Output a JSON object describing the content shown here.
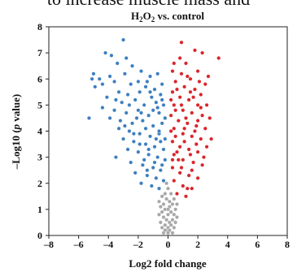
{
  "caption_fragment": "to increase muscle mass and",
  "chart_data": {
    "type": "scatter",
    "title_parts": {
      "prefix": "H",
      "sub1": "2",
      "mid": "O",
      "sub2": "2",
      "suffix": " vs. control"
    },
    "xlabel": "Log2 fold change",
    "ylabel_parts": {
      "prefix": "–Log10 (",
      "italic": "p",
      "suffix": " value)"
    },
    "xlim": [
      -8,
      8
    ],
    "ylim": [
      0,
      8
    ],
    "xticks": [
      -8,
      -6,
      -4,
      -2,
      0,
      2,
      4,
      6,
      8
    ],
    "yticks": [
      0,
      1,
      2,
      3,
      4,
      5,
      6,
      7,
      8
    ],
    "grid": false,
    "legend": "none",
    "colors": {
      "down": "#3d7fbf",
      "up": "#d9252b",
      "ns": "#a8a8a8"
    },
    "series": [
      {
        "group": "down",
        "points": [
          [
            -3.0,
            7.5
          ],
          [
            -3.8,
            6.9
          ],
          [
            -4.2,
            7.0
          ],
          [
            -3.4,
            6.6
          ],
          [
            -2.8,
            6.8
          ],
          [
            -2.4,
            6.5
          ],
          [
            -5.0,
            6.2
          ],
          [
            -5.1,
            6.0
          ],
          [
            -4.6,
            6.0
          ],
          [
            -3.9,
            6.1
          ],
          [
            -2.9,
            6.2
          ],
          [
            -1.8,
            6.3
          ],
          [
            -1.2,
            6.1
          ],
          [
            -0.7,
            6.2
          ],
          [
            -4.4,
            5.8
          ],
          [
            -4.9,
            5.7
          ],
          [
            -3.6,
            5.9
          ],
          [
            -2.5,
            5.8
          ],
          [
            -1.5,
            5.7
          ],
          [
            -0.9,
            5.6
          ],
          [
            -0.4,
            5.8
          ],
          [
            -3.3,
            5.5
          ],
          [
            -2.7,
            5.4
          ],
          [
            -1.9,
            5.5
          ],
          [
            -1.1,
            5.3
          ],
          [
            -0.5,
            5.4
          ],
          [
            -4.1,
            5.3
          ],
          [
            -3.1,
            5.1
          ],
          [
            -2.2,
            5.2
          ],
          [
            -1.6,
            5.0
          ],
          [
            -0.8,
            5.1
          ],
          [
            -0.3,
            5.0
          ],
          [
            -4.4,
            4.9
          ],
          [
            -3.6,
            4.8
          ],
          [
            -2.8,
            4.7
          ],
          [
            -2.0,
            4.8
          ],
          [
            -1.3,
            4.6
          ],
          [
            -0.6,
            4.7
          ],
          [
            -0.2,
            4.5
          ],
          [
            -5.3,
            4.5
          ],
          [
            -3.9,
            4.5
          ],
          [
            -3.2,
            4.4
          ],
          [
            -2.4,
            4.3
          ],
          [
            -1.7,
            4.4
          ],
          [
            -1.0,
            4.2
          ],
          [
            -0.4,
            4.3
          ],
          [
            -3.3,
            4.1
          ],
          [
            -2.6,
            4.0
          ],
          [
            -1.9,
            3.9
          ],
          [
            -1.2,
            3.8
          ],
          [
            -0.6,
            3.9
          ],
          [
            -0.2,
            3.7
          ],
          [
            -3.0,
            3.7
          ],
          [
            -2.3,
            3.6
          ],
          [
            -1.5,
            3.5
          ],
          [
            -0.9,
            3.4
          ],
          [
            -0.3,
            3.3
          ],
          [
            -2.7,
            3.3
          ],
          [
            -2.0,
            3.2
          ],
          [
            -1.3,
            3.1
          ],
          [
            -0.7,
            3.0
          ],
          [
            -0.2,
            2.9
          ],
          [
            -3.5,
            3.0
          ],
          [
            -2.5,
            2.8
          ],
          [
            -1.7,
            2.7
          ],
          [
            -1.0,
            2.6
          ],
          [
            -0.5,
            2.5
          ],
          [
            -2.2,
            2.4
          ],
          [
            -1.4,
            2.3
          ],
          [
            -0.8,
            2.2
          ],
          [
            -0.3,
            2.1
          ],
          [
            -1.8,
            2.0
          ],
          [
            -1.1,
            1.9
          ],
          [
            -0.6,
            1.8
          ],
          [
            -2.0,
            5.9
          ],
          [
            -1.4,
            5.9
          ],
          [
            -0.6,
            4.0
          ],
          [
            -1.5,
            4.1
          ],
          [
            -2.1,
            4.5
          ],
          [
            -2.9,
            4.2
          ],
          [
            -1.3,
            3.3
          ],
          [
            -0.5,
            3.6
          ],
          [
            -1.6,
            2.9
          ],
          [
            -0.9,
            2.8
          ],
          [
            -2.3,
            3.9
          ],
          [
            -1.8,
            4.7
          ],
          [
            -0.7,
            4.9
          ],
          [
            -1.2,
            5.5
          ],
          [
            -2.6,
            5.0
          ],
          [
            -3.5,
            5.2
          ],
          [
            -0.4,
            5.2
          ],
          [
            -1.0,
            4.8
          ],
          [
            -1.9,
            3.5
          ],
          [
            -0.8,
            3.7
          ],
          [
            -1.4,
            2.5
          ],
          [
            -0.4,
            2.7
          ]
        ]
      },
      {
        "group": "up",
        "points": [
          [
            0.9,
            7.4
          ],
          [
            1.8,
            7.1
          ],
          [
            2.3,
            7.0
          ],
          [
            3.4,
            6.8
          ],
          [
            0.4,
            6.6
          ],
          [
            1.2,
            6.6
          ],
          [
            2.0,
            6.3
          ],
          [
            2.7,
            6.1
          ],
          [
            0.3,
            6.3
          ],
          [
            0.9,
            6.2
          ],
          [
            1.5,
            6.0
          ],
          [
            2.5,
            5.8
          ],
          [
            0.5,
            5.9
          ],
          [
            1.1,
            5.7
          ],
          [
            1.8,
            5.6
          ],
          [
            2.2,
            5.4
          ],
          [
            0.3,
            5.5
          ],
          [
            0.8,
            5.3
          ],
          [
            1.4,
            5.2
          ],
          [
            2.0,
            5.0
          ],
          [
            2.6,
            5.0
          ],
          [
            0.4,
            5.0
          ],
          [
            1.0,
            4.8
          ],
          [
            1.6,
            4.7
          ],
          [
            2.3,
            4.6
          ],
          [
            0.2,
            4.6
          ],
          [
            0.7,
            4.4
          ],
          [
            1.3,
            4.3
          ],
          [
            1.9,
            4.2
          ],
          [
            2.5,
            4.1
          ],
          [
            0.4,
            4.1
          ],
          [
            1.0,
            3.9
          ],
          [
            1.6,
            3.8
          ],
          [
            2.2,
            3.7
          ],
          [
            2.9,
            3.7
          ],
          [
            0.3,
            3.6
          ],
          [
            0.8,
            3.4
          ],
          [
            1.4,
            3.3
          ],
          [
            2.0,
            3.2
          ],
          [
            2.6,
            3.4
          ],
          [
            0.4,
            3.1
          ],
          [
            1.0,
            2.9
          ],
          [
            1.7,
            2.8
          ],
          [
            2.3,
            2.7
          ],
          [
            0.3,
            2.6
          ],
          [
            0.8,
            2.4
          ],
          [
            1.4,
            2.3
          ],
          [
            2.0,
            2.2
          ],
          [
            0.4,
            2.1
          ],
          [
            1.0,
            1.9
          ],
          [
            1.6,
            1.8
          ],
          [
            0.6,
            1.6
          ],
          [
            1.2,
            1.5
          ],
          [
            0.5,
            3.8
          ],
          [
            1.2,
            4.5
          ],
          [
            1.7,
            5.3
          ],
          [
            0.6,
            5.6
          ],
          [
            1.3,
            6.1
          ],
          [
            2.1,
            5.9
          ],
          [
            0.7,
            2.9
          ],
          [
            1.5,
            3.1
          ],
          [
            2.2,
            4.9
          ],
          [
            2.8,
            4.5
          ],
          [
            0.5,
            4.8
          ],
          [
            1.1,
            3.6
          ],
          [
            1.8,
            4.0
          ],
          [
            0.9,
            2.6
          ],
          [
            1.6,
            2.5
          ],
          [
            2.4,
            3.0
          ],
          [
            0.2,
            4.0
          ],
          [
            0.6,
            3.2
          ],
          [
            1.9,
            3.5
          ],
          [
            0.9,
            5.0
          ],
          [
            1.5,
            5.5
          ],
          [
            2.0,
            4.4
          ],
          [
            0.3,
            2.9
          ],
          [
            1.3,
            1.8
          ],
          [
            0.8,
            6.8
          ],
          [
            0.2,
            5.2
          ],
          [
            1.1,
            4.1
          ]
        ]
      },
      {
        "group": "ns",
        "points": [
          [
            -0.1,
            1.4
          ],
          [
            0.1,
            1.3
          ],
          [
            -0.3,
            1.2
          ],
          [
            0.3,
            1.2
          ],
          [
            -0.5,
            1.1
          ],
          [
            0.5,
            1.0
          ],
          [
            -0.2,
            1.0
          ],
          [
            0.2,
            0.9
          ],
          [
            -0.4,
            0.9
          ],
          [
            0.4,
            0.8
          ],
          [
            0.0,
            0.8
          ],
          [
            -0.6,
            0.8
          ],
          [
            0.6,
            0.7
          ],
          [
            -0.3,
            0.7
          ],
          [
            0.3,
            0.6
          ],
          [
            -0.1,
            0.6
          ],
          [
            0.1,
            0.5
          ],
          [
            -0.5,
            0.5
          ],
          [
            0.5,
            0.5
          ],
          [
            -0.2,
            0.4
          ],
          [
            0.2,
            0.4
          ],
          [
            0.0,
            0.3
          ],
          [
            -0.4,
            0.3
          ],
          [
            0.4,
            0.3
          ],
          [
            -0.1,
            0.2
          ],
          [
            0.1,
            0.2
          ],
          [
            -0.3,
            0.1
          ],
          [
            0.3,
            0.1
          ],
          [
            0.0,
            0.1
          ],
          [
            -0.2,
            1.6
          ],
          [
            0.2,
            1.6
          ],
          [
            0.0,
            1.8
          ],
          [
            -0.4,
            1.5
          ],
          [
            0.4,
            1.4
          ],
          [
            -0.1,
            2.0
          ],
          [
            0.1,
            1.1
          ],
          [
            -0.6,
            1.3
          ],
          [
            0.6,
            1.2
          ],
          [
            0.0,
            1.0
          ],
          [
            -0.2,
            0.2
          ]
        ]
      }
    ]
  }
}
